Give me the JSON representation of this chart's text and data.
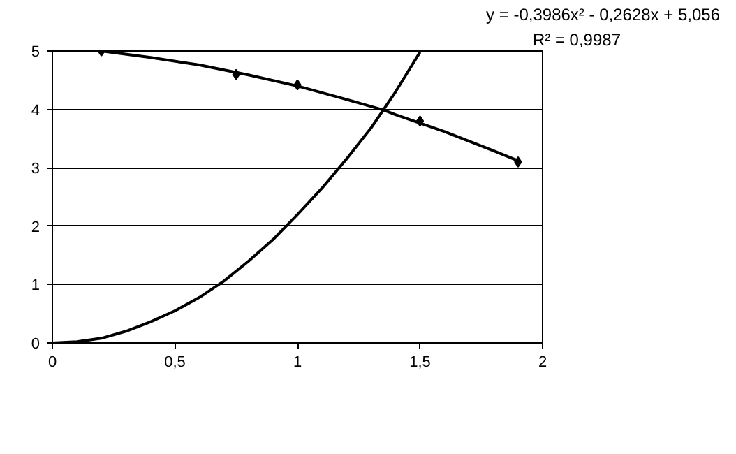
{
  "chart_data": {
    "type": "line",
    "annotations": [
      "y = -0,3986x² - 0,2628x + 5,056",
      "R² = 0,9987"
    ],
    "series": [
      {
        "type": "scatter",
        "marker": "diamond",
        "color": "#000000",
        "x": [
          0.2,
          0.75,
          1.0,
          1.5,
          1.9
        ],
        "values": [
          5.0,
          4.6,
          4.42,
          3.8,
          3.1
        ]
      },
      {
        "marker": "none",
        "color": "#000000",
        "x": [
          0.2,
          0.4,
          0.6,
          0.8,
          1.0,
          1.2,
          1.35,
          1.4,
          1.6,
          1.8,
          1.9
        ],
        "values": [
          5.0,
          4.89,
          4.76,
          4.59,
          4.4,
          4.17,
          3.99,
          3.91,
          3.62,
          3.29,
          3.12
        ]
      },
      {
        "marker": "none",
        "color": "#000000",
        "x": [
          0,
          0.1,
          0.2,
          0.3,
          0.4,
          0.5,
          0.6,
          0.7,
          0.8,
          0.9,
          1.0,
          1.1,
          1.2,
          1.3,
          1.4,
          1.5
        ],
        "values": [
          0,
          0.02,
          0.08,
          0.2,
          0.36,
          0.55,
          0.78,
          1.06,
          1.4,
          1.77,
          2.2,
          2.65,
          3.15,
          3.68,
          4.3,
          4.98
        ]
      }
    ],
    "xlim": [
      0,
      2
    ],
    "xticks": [
      0,
      {
        "value": 0.5,
        "label": "0,5"
      },
      1,
      {
        "value": 1.5,
        "label": "1,5"
      },
      2
    ],
    "ylim": [
      0,
      5
    ],
    "yticks": [
      0,
      1,
      2,
      3,
      4,
      5
    ],
    "grid": "y"
  }
}
